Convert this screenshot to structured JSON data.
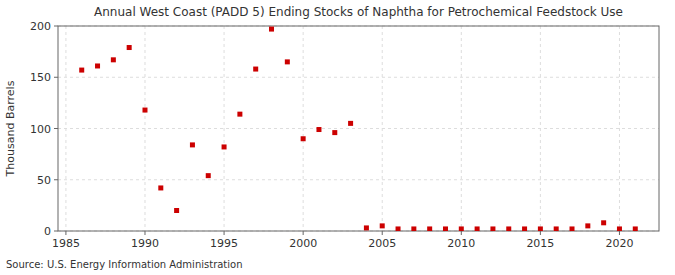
{
  "chart_data": {
    "type": "scatter",
    "title": "Annual West Coast (PADD 5) Ending Stocks of Naphtha for Petrochemical Feedstock Use",
    "ylabel": "Thousand Barrels",
    "source": "Source: U.S. Energy Information Administration",
    "x": [
      1986,
      1987,
      1988,
      1989,
      1990,
      1991,
      1992,
      1993,
      1994,
      1995,
      1996,
      1997,
      1998,
      1999,
      2000,
      2001,
      2002,
      2003,
      2004,
      2005,
      2006,
      2007,
      2008,
      2009,
      2010,
      2011,
      2012,
      2013,
      2014,
      2015,
      2016,
      2017,
      2018,
      2019,
      2020,
      2021
    ],
    "values": [
      157,
      161,
      167,
      179,
      118,
      42,
      20,
      84,
      54,
      82,
      114,
      158,
      197,
      165,
      90,
      99,
      96,
      105,
      3,
      5,
      2,
      2,
      2,
      2,
      2,
      2,
      2,
      2,
      2,
      2,
      2,
      2,
      5,
      8,
      2,
      2
    ],
    "color": "#cc0000",
    "marker": "square",
    "xlim": [
      1984.5,
      2022.5
    ],
    "xticks": [
      1985,
      1990,
      1995,
      2000,
      2005,
      2010,
      2015,
      2020
    ],
    "ylim": [
      0,
      200
    ],
    "yticks": [
      0,
      50,
      100,
      150,
      200
    ],
    "grid": true
  }
}
